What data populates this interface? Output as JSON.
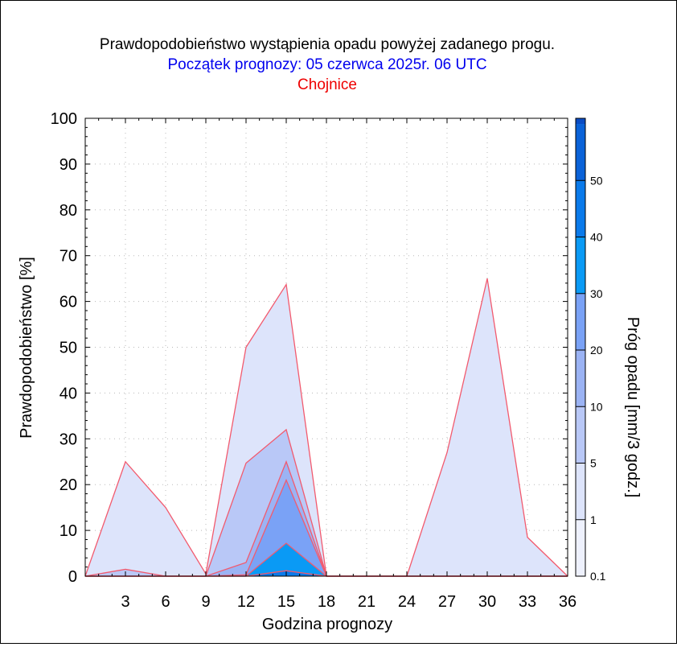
{
  "chart_data": {
    "type": "area",
    "title": "Prawdopodobieństwo wystąpienia opadu powyżej zadanego progu.",
    "subtitle": "Początek prognozy: 05 czerwca 2025r. 06 UTC",
    "location": "Chojnice",
    "xlabel": "Godzina prognozy",
    "ylabel": "Prawdopodobieństwo [%]",
    "xlim": [
      0,
      36
    ],
    "ylim": [
      0,
      100
    ],
    "x_ticks": [
      3,
      6,
      9,
      12,
      15,
      18,
      21,
      24,
      27,
      30,
      33,
      36
    ],
    "y_ticks": [
      0,
      10,
      20,
      30,
      40,
      50,
      60,
      70,
      80,
      90,
      100
    ],
    "grid": true,
    "x": [
      0,
      3,
      6,
      9,
      12,
      15,
      18,
      21,
      24,
      27,
      30,
      33,
      36
    ],
    "series": [
      {
        "threshold": 0.1,
        "color": "#dde4fb",
        "values": [
          0,
          25,
          15,
          0.5,
          50,
          63.7,
          0,
          0,
          0,
          27,
          65,
          8.5,
          0
        ]
      },
      {
        "threshold": 1,
        "color": "#b9c8f7",
        "values": [
          0,
          1.5,
          0,
          0,
          24.7,
          32,
          0,
          0,
          0,
          0,
          0,
          0,
          0
        ]
      },
      {
        "threshold": 5,
        "color": "#9bb3f4",
        "values": [
          0,
          0,
          0,
          0,
          3,
          25,
          0,
          0,
          0,
          0,
          0,
          0,
          0
        ]
      },
      {
        "threshold": 10,
        "color": "#7aa2f6",
        "values": [
          0,
          0,
          0,
          0,
          0.3,
          21,
          0,
          0,
          0,
          0,
          0,
          0,
          0
        ]
      },
      {
        "threshold": 20,
        "color": "#0a9af5",
        "values": [
          0,
          0,
          0,
          0,
          0,
          7.2,
          0,
          0,
          0,
          0,
          0,
          0,
          0
        ]
      },
      {
        "threshold": 30,
        "color": "#0a7aea",
        "values": [
          0,
          0,
          0,
          0,
          0,
          1.2,
          0,
          0,
          0,
          0,
          0,
          0,
          0
        ]
      }
    ],
    "colorbar": {
      "label": "Próg opadu [mm/3 godz.]",
      "ticks": [
        "0.1",
        "1",
        "5",
        "10",
        "20",
        "30",
        "40",
        "50"
      ],
      "colors": [
        "#eef1fd",
        "#dde4fb",
        "#b9c8f7",
        "#9bb3f4",
        "#7aa2f6",
        "#0a9af5",
        "#0a7aea",
        "#0a62d8",
        "#0a4cc4",
        "#0a34a4"
      ]
    }
  }
}
